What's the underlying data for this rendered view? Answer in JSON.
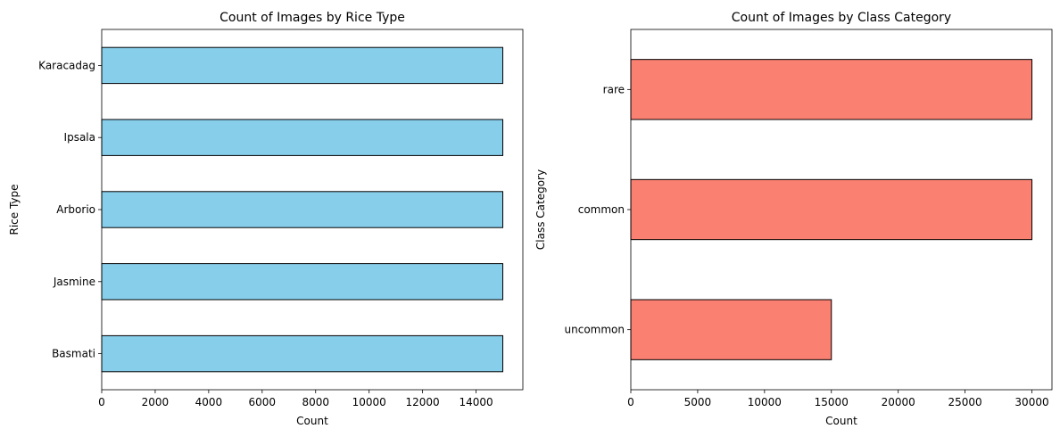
{
  "chart_data": [
    {
      "type": "bar",
      "orientation": "horizontal",
      "title": "Count of Images by Rice Type",
      "xlabel": "Count",
      "ylabel": "Rice Type",
      "categories": [
        "Basmati",
        "Jasmine",
        "Arborio",
        "Ipsala",
        "Karacadag"
      ],
      "values": [
        15000,
        15000,
        15000,
        15000,
        15000
      ],
      "xlim": [
        0,
        15750
      ],
      "xticks": [
        0,
        2000,
        4000,
        6000,
        8000,
        10000,
        12000,
        14000
      ],
      "color": "#87ceeb",
      "edge_color": "#000000",
      "grid": false
    },
    {
      "type": "bar",
      "orientation": "horizontal",
      "title": "Count of Images by Class Category",
      "xlabel": "Count",
      "ylabel": "Class Category",
      "categories": [
        "uncommon",
        "common",
        "rare"
      ],
      "values": [
        15000,
        30000,
        30000
      ],
      "xlim": [
        0,
        31500
      ],
      "xticks": [
        0,
        5000,
        10000,
        15000,
        20000,
        25000,
        30000
      ],
      "color": "#fa8072",
      "edge_color": "#000000",
      "grid": false
    }
  ]
}
